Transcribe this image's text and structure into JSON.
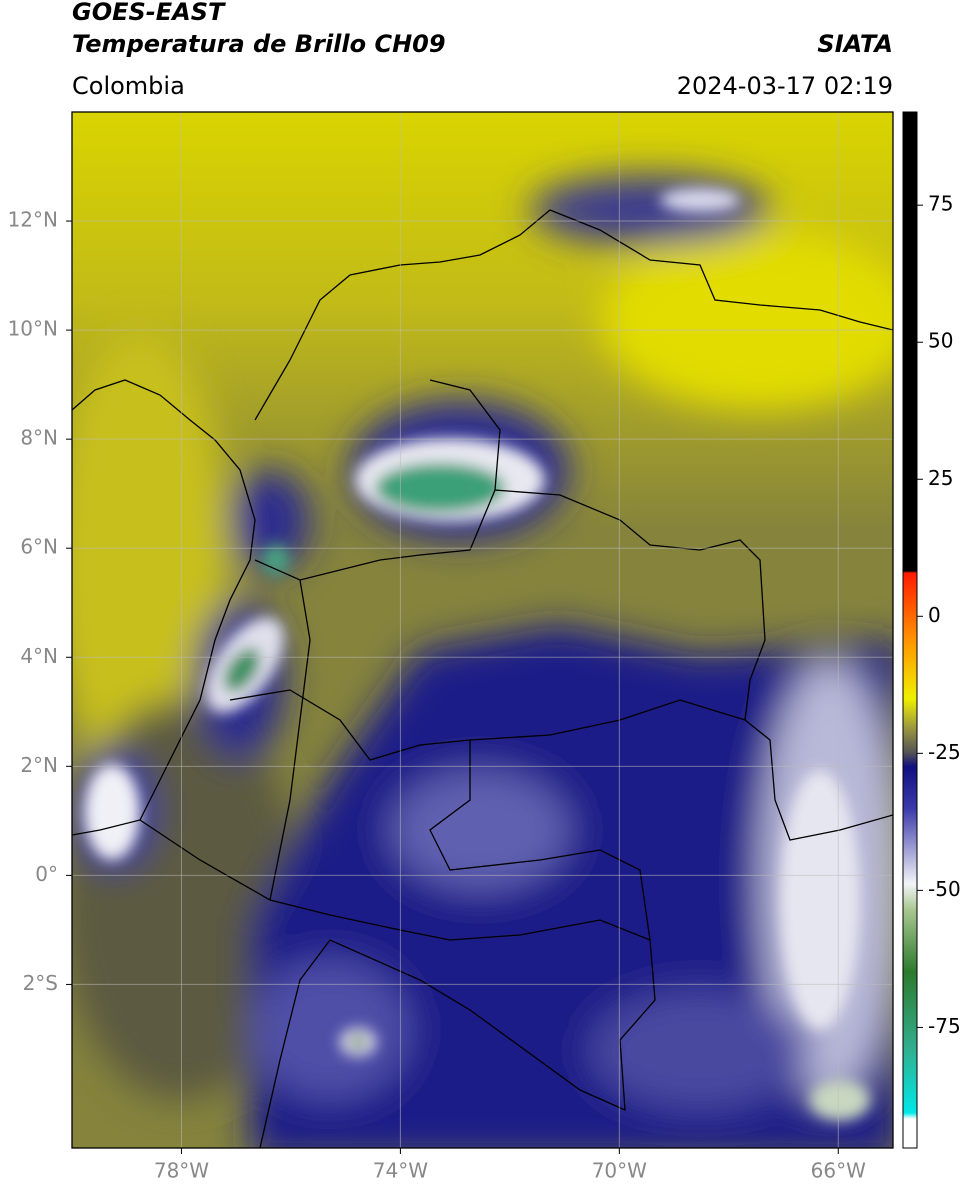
{
  "header": {
    "title": "GOES-EAST",
    "subtitle": "Temperatura de Brillo CH09",
    "source": "SIATA",
    "region": "Colombia",
    "datetime": "2024-03-17 02:19"
  },
  "map": {
    "xlim": [
      -80,
      -65
    ],
    "ylim": [
      -5,
      14
    ],
    "xticks": [
      {
        "value": -78,
        "label": "78°W"
      },
      {
        "value": -74,
        "label": "74°W"
      },
      {
        "value": -70,
        "label": "70°W"
      },
      {
        "value": -66,
        "label": "66°W"
      }
    ],
    "yticks": [
      {
        "value": 12,
        "label": "12°N"
      },
      {
        "value": 10,
        "label": "10°N"
      },
      {
        "value": 8,
        "label": "8°N"
      },
      {
        "value": 6,
        "label": "6°N"
      },
      {
        "value": 4,
        "label": "4°N"
      },
      {
        "value": 2,
        "label": "2°N"
      },
      {
        "value": 0,
        "label": "0°"
      },
      {
        "value": -2,
        "label": "2°S"
      }
    ],
    "grid": true
  },
  "colorbar": {
    "lim": [
      -97,
      92
    ],
    "ticks": [
      75,
      50,
      25,
      0,
      -25,
      -50,
      -75
    ]
  }
}
